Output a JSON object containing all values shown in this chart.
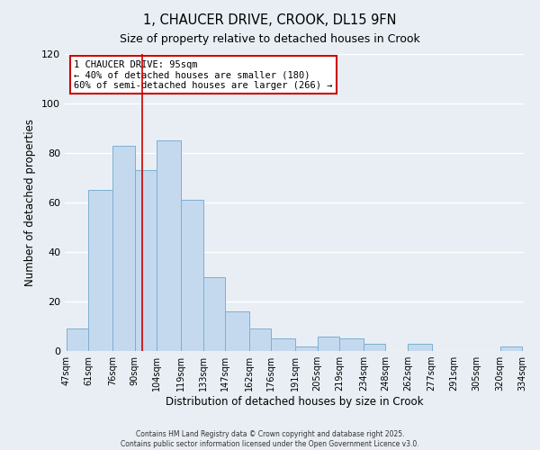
{
  "title": "1, CHAUCER DRIVE, CROOK, DL15 9FN",
  "subtitle": "Size of property relative to detached houses in Crook",
  "xlabel": "Distribution of detached houses by size in Crook",
  "ylabel": "Number of detached properties",
  "bar_left_edges": [
    47,
    61,
    76,
    90,
    104,
    119,
    133,
    147,
    162,
    176,
    191,
    205,
    219,
    234,
    248,
    262,
    277,
    291,
    305,
    320
  ],
  "bar_widths": [
    14,
    15,
    14,
    14,
    15,
    14,
    14,
    15,
    14,
    15,
    14,
    14,
    15,
    14,
    14,
    15,
    14,
    14,
    15,
    14
  ],
  "bar_heights": [
    9,
    65,
    83,
    73,
    85,
    61,
    30,
    16,
    9,
    5,
    2,
    6,
    5,
    3,
    0,
    3,
    0,
    0,
    0,
    2
  ],
  "tick_labels": [
    "47sqm",
    "61sqm",
    "76sqm",
    "90sqm",
    "104sqm",
    "119sqm",
    "133sqm",
    "147sqm",
    "162sqm",
    "176sqm",
    "191sqm",
    "205sqm",
    "219sqm",
    "234sqm",
    "248sqm",
    "262sqm",
    "277sqm",
    "291sqm",
    "305sqm",
    "320sqm",
    "334sqm"
  ],
  "bar_color": "#c5d9ee",
  "bar_edge_color": "#7bafd4",
  "background_color": "#e8eef4",
  "grid_color": "#ffffff",
  "vline_x": 95,
  "vline_color": "#cc0000",
  "ylim": [
    0,
    120
  ],
  "yticks": [
    0,
    20,
    40,
    60,
    80,
    100,
    120
  ],
  "annotation_title": "1 CHAUCER DRIVE: 95sqm",
  "annotation_line1": "← 40% of detached houses are smaller (180)",
  "annotation_line2": "60% of semi-detached houses are larger (266) →",
  "annotation_box_color": "#ffffff",
  "annotation_box_edge": "#cc0000",
  "footer1": "Contains HM Land Registry data © Crown copyright and database right 2025.",
  "footer2": "Contains public sector information licensed under the Open Government Licence v3.0."
}
